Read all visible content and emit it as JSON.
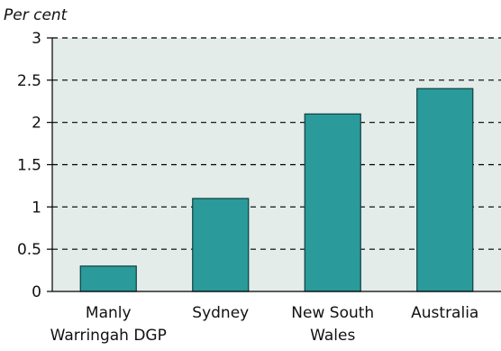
{
  "chart_data": {
    "type": "bar",
    "ylabel": "Per cent",
    "categories": [
      [
        "Manly",
        "Warringah DGP"
      ],
      [
        "Sydney"
      ],
      [
        "New South",
        "Wales"
      ],
      [
        "Australia"
      ]
    ],
    "values": [
      0.3,
      1.1,
      2.1,
      2.4
    ],
    "ylim": [
      0,
      3
    ],
    "yticks": [
      "0",
      "0.5",
      "1",
      "1.5",
      "2",
      "2.5",
      "3"
    ],
    "grid": true,
    "grid_style": "dashed horizontal",
    "legend": "none",
    "colors": {
      "bar": "#2a9a9b",
      "bar_edge": "#0f3f3f",
      "plot_background": "#e3ece8",
      "grid": "#000000"
    }
  }
}
